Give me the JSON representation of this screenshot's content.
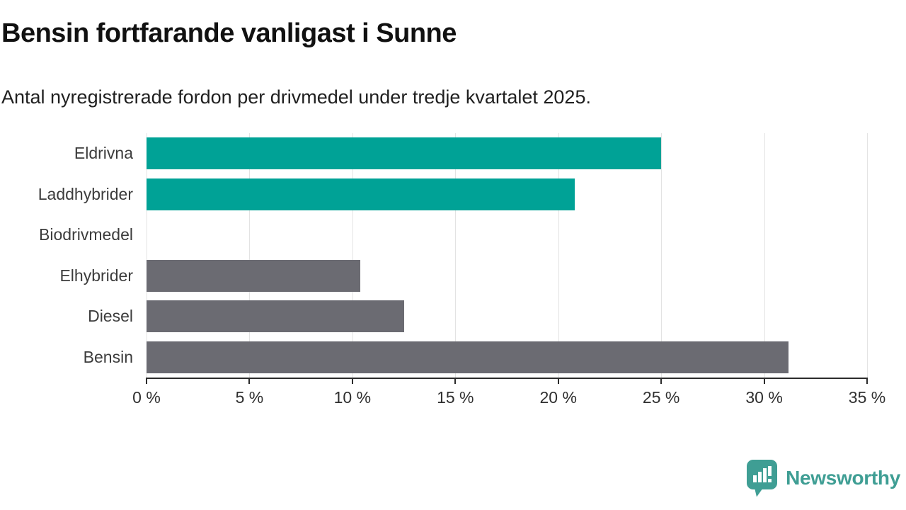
{
  "header": {
    "title": "Bensin fortfarande vanligast i Sunne",
    "subtitle": "Antal nyregistrerade fordon per drivmedel under tredje kvartalet 2025."
  },
  "chart_data": {
    "type": "bar",
    "orientation": "horizontal",
    "title": "Bensin fortfarande vanligast i Sunne",
    "subtitle": "Antal nyregistrerade fordon per drivmedel under tredje kvartalet 2025.",
    "categories": [
      "Eldrivna",
      "Laddhybrider",
      "Biodrivmedel",
      "Elhybrider",
      "Diesel",
      "Bensin"
    ],
    "values": [
      25.0,
      20.8,
      0,
      10.4,
      12.5,
      31.2
    ],
    "bar_colors": [
      "#00a296",
      "#00a296",
      "#00a296",
      "#6b6b72",
      "#6b6b72",
      "#6b6b72"
    ],
    "xlabel": "",
    "ylabel": "",
    "xlim": [
      0,
      35
    ],
    "xticks": [
      0,
      5,
      10,
      15,
      20,
      25,
      30,
      35
    ],
    "xtick_labels": [
      "0 %",
      "5 %",
      "10 %",
      "15 %",
      "20 %",
      "25 %",
      "30 %",
      "35 %"
    ],
    "grid": "vertical",
    "legend": "none"
  },
  "colors": {
    "accent_teal": "#00a296",
    "bar_gray": "#6b6b72",
    "gridline": "#e3e3e3",
    "axis": "#2b2b2b",
    "title_text": "#111111",
    "label_text": "#3c3c3c",
    "logo_teal": "#3f9e94"
  },
  "footer": {
    "brand": "Newsworthy"
  }
}
